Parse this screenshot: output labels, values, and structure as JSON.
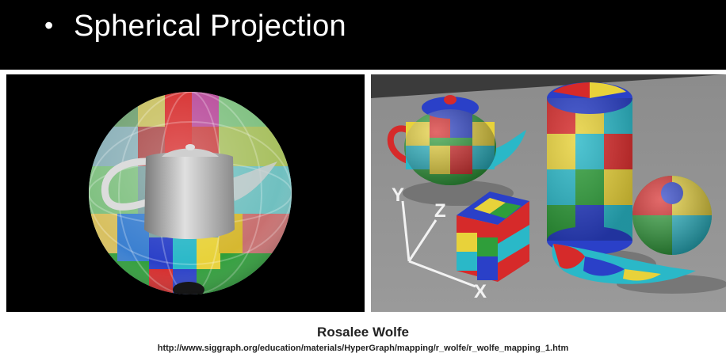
{
  "slide": {
    "bullet": "•",
    "title": "Spherical Projection"
  },
  "figures": {
    "left": "spherical-projection-teapot-inside-sphere",
    "right": "spherical-mapped-objects-scene",
    "axis_labels": {
      "y": "Y",
      "z": "Z",
      "x": "X"
    }
  },
  "credit": {
    "name": "Rosalee Wolfe",
    "url": "http://www.siggraph.org/education/materials/HyperGraph/mapping/r_wolfe/r_wolfe_mapping_1.htm"
  },
  "colors": {
    "background": "#000000",
    "content_bg": "#ffffff",
    "title_text": "#ffffff",
    "palette": [
      "#d62a2a",
      "#e8d23a",
      "#2f9e3a",
      "#2a40c8",
      "#2ab8c8"
    ]
  }
}
